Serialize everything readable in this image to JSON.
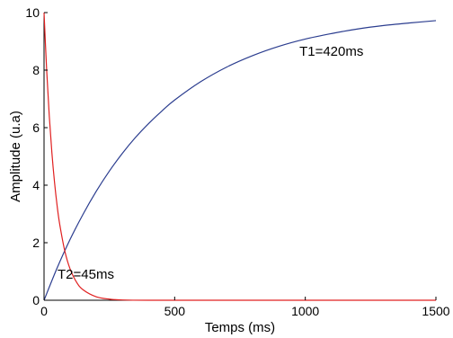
{
  "chart_data": {
    "type": "line",
    "title": "",
    "xlabel": "Temps (ms)",
    "ylabel": "Amplitude (u.a)",
    "xlim": [
      0,
      1500
    ],
    "ylim": [
      0,
      10
    ],
    "xticks": [
      0,
      500,
      1000,
      1500
    ],
    "yticks": [
      0,
      2,
      4,
      6,
      8,
      10
    ],
    "xtick_labels": [
      "0",
      "500",
      "1000",
      "1500"
    ],
    "ytick_labels": [
      "0",
      "2",
      "4",
      "6",
      "8",
      "10"
    ],
    "grid": false,
    "legend": "none",
    "series": [
      {
        "color": "#2b3d8f",
        "x": [
          0,
          50,
          100,
          150,
          200,
          250,
          300,
          350,
          400,
          450,
          500,
          600,
          700,
          800,
          900,
          1000,
          1100,
          1200,
          1300,
          1400,
          1500
        ],
        "y": [
          0,
          1.12,
          2.12,
          3.0,
          3.79,
          4.49,
          5.11,
          5.66,
          6.14,
          6.57,
          6.96,
          7.6,
          8.11,
          8.51,
          8.83,
          9.08,
          9.27,
          9.43,
          9.55,
          9.64,
          9.72
        ]
      },
      {
        "color": "#e02020",
        "x": [
          0,
          10,
          20,
          30,
          40,
          50,
          60,
          80,
          100,
          125,
          150,
          200,
          250,
          300,
          400,
          600,
          800,
          1000,
          1200,
          1500
        ],
        "y": [
          10,
          8.01,
          6.41,
          5.13,
          4.11,
          3.29,
          2.64,
          1.69,
          1.08,
          0.62,
          0.36,
          0.12,
          0.04,
          0.01,
          0,
          0,
          0,
          0,
          0,
          0
        ]
      }
    ],
    "annotations": [
      {
        "text": "T1=420ms",
        "x": 1100,
        "y": 8.5
      },
      {
        "text": "T2=45ms",
        "x": 160,
        "y": 0.75
      }
    ]
  }
}
